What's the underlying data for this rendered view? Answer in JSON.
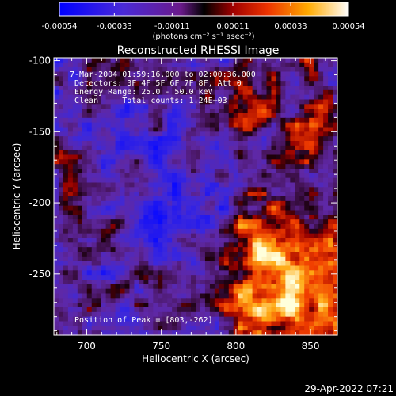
{
  "colorbar": {
    "tick_labels": [
      "-0.00054",
      "-0.00033",
      "-0.00011",
      "0.00011",
      "0.00033",
      "0.00054"
    ],
    "units": "(photons cm⁻² s⁻¹ asec⁻²)",
    "range": [
      -0.00054,
      0.00054
    ]
  },
  "plot": {
    "title": "Reconstructed RHESSI Image",
    "xlabel": "Heliocentric X (arcsec)",
    "ylabel": "Heliocentric Y (arcsec)",
    "xlim": [
      678,
      868
    ],
    "ylim": [
      -293,
      -98
    ],
    "x_ticks": [
      "700",
      "750",
      "800",
      "850"
    ],
    "x_tick_values": [
      700,
      750,
      800,
      850
    ],
    "y_ticks": [
      "-100",
      "-150",
      "-200",
      "-250"
    ],
    "y_tick_values": [
      -100,
      -150,
      -200,
      -250
    ]
  },
  "annotations": {
    "time_range": "7-Mar-2004 01:59:16.000 to 02:00:36.000",
    "detectors": "Detectors: 3F 4F 5F 6F 7F 8F, Att 0",
    "energy": "Energy Range: 25.0 - 50.0 keV",
    "method_counts": "Clean     Total counts: 1.24E+03",
    "peak": "Position of Peak = [803,-262]"
  },
  "peak": {
    "x": 803,
    "y": -262
  },
  "footer": {
    "timestamp": "29-Apr-2022 07:21"
  }
}
